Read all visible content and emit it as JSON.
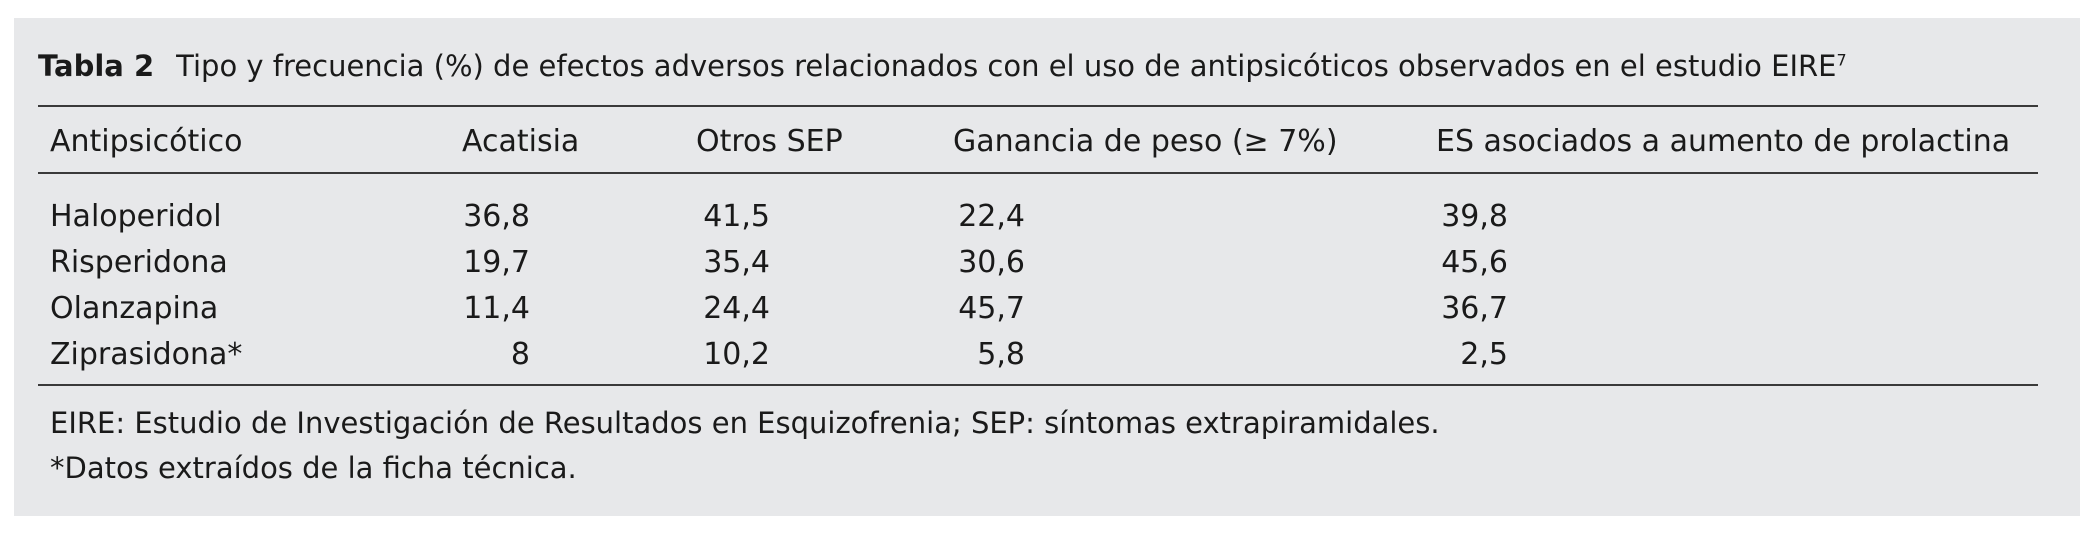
{
  "caption": {
    "label": "Tabla 2",
    "text": "Tipo y frecuencia (%) de efectos adversos relacionados con el uso de antipsicóticos observados en el estudio EIRE",
    "reference": "7"
  },
  "table": {
    "headers": [
      "Antipsicótico",
      "Acatisia",
      "Otros SEP",
      "Ganancia de peso (≥ 7%)",
      "ES asociados a aumento de prolactina"
    ],
    "rows": [
      [
        "Haloperidol",
        "36,8",
        "41,5",
        "22,4",
        "39,8"
      ],
      [
        "Risperidona",
        "19,7",
        "35,4",
        "30,6",
        "45,6"
      ],
      [
        "Olanzapina",
        "11,4",
        "24,4",
        "45,7",
        "36,7"
      ],
      [
        "Ziprasidona*",
        "8",
        "10,2",
        "5,8",
        "2,5"
      ]
    ]
  },
  "footnotes": [
    "EIRE: Estudio de Investigación de Resultados en Esquizofrenia; SEP: síntomas extrapiramidales.",
    "*Datos extraídos de la ficha técnica."
  ]
}
